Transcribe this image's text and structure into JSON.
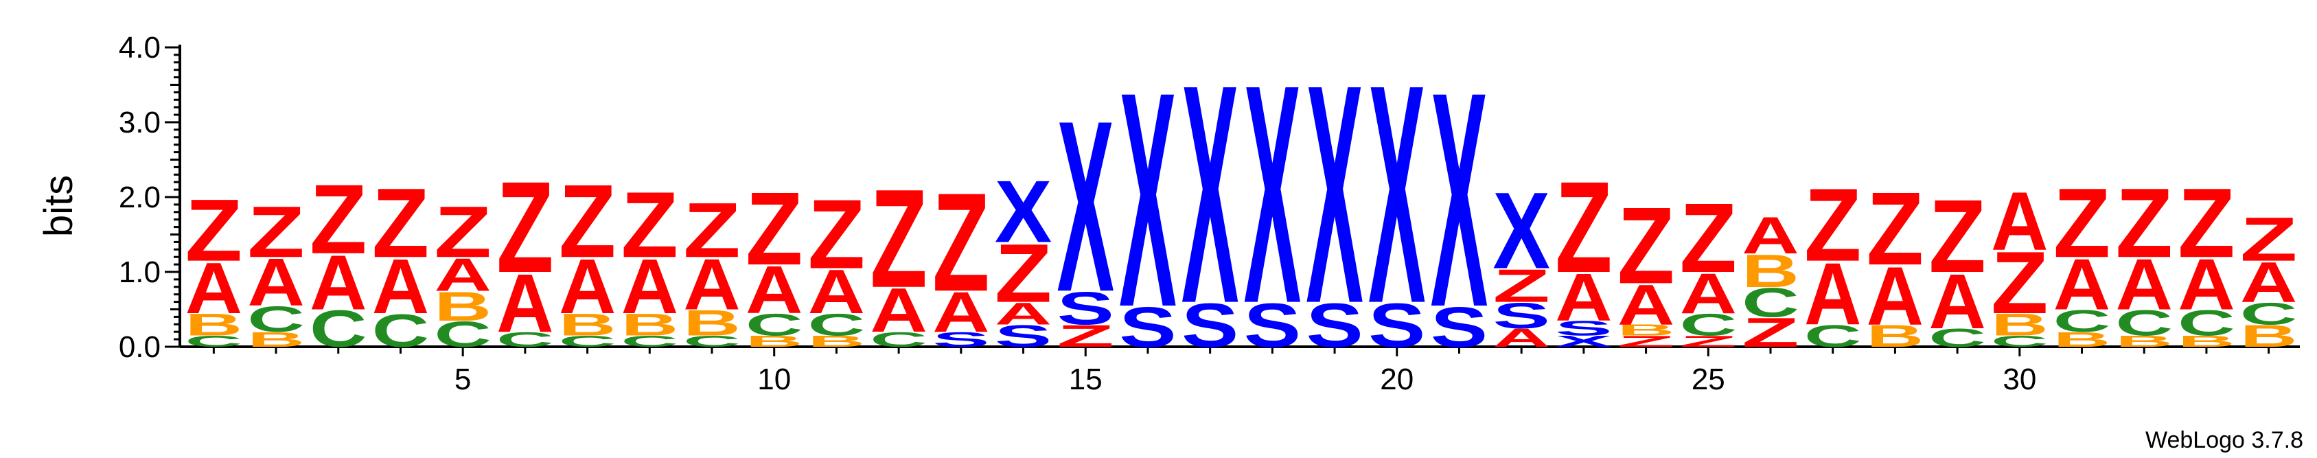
{
  "chart_data": {
    "type": "sequence-logo",
    "ylabel": "bits",
    "ylim": [
      0,
      4.0
    ],
    "yticks": [
      "0.0",
      "1.0",
      "2.0",
      "3.0",
      "4.0"
    ],
    "xticks": [
      5,
      10,
      15,
      20,
      25,
      30
    ],
    "x_range": [
      1,
      34
    ],
    "colors": {
      "Z": "#ff0000",
      "A": "#ff0000",
      "X": "#0000ff",
      "S": "#0000ff",
      "B": "#ff9900",
      "C": "#228b22",
      "axis": "#000000"
    },
    "positions": [
      {
        "pos": 1,
        "letters": [
          [
            "C",
            0.15
          ],
          [
            "B",
            0.3
          ],
          [
            "A",
            0.7
          ],
          [
            "Z",
            0.85
          ]
        ]
      },
      {
        "pos": 2,
        "letters": [
          [
            "B",
            0.2
          ],
          [
            "C",
            0.35
          ],
          [
            "A",
            0.65
          ],
          [
            "Z",
            0.7
          ]
        ]
      },
      {
        "pos": 3,
        "letters": [
          [
            "C",
            0.5
          ],
          [
            "A",
            0.75
          ],
          [
            "Z",
            0.95
          ]
        ]
      },
      {
        "pos": 4,
        "letters": [
          [
            "C",
            0.45
          ],
          [
            "A",
            0.75
          ],
          [
            "Z",
            0.95
          ]
        ]
      },
      {
        "pos": 5,
        "letters": [
          [
            "C",
            0.35
          ],
          [
            "B",
            0.4
          ],
          [
            "A",
            0.45
          ],
          [
            "Z",
            0.7
          ]
        ]
      },
      {
        "pos": 6,
        "letters": [
          [
            "C",
            0.2
          ],
          [
            "A",
            0.8
          ],
          [
            "Z",
            1.25
          ]
        ]
      },
      {
        "pos": 7,
        "letters": [
          [
            "C",
            0.15
          ],
          [
            "B",
            0.3
          ],
          [
            "A",
            0.75
          ],
          [
            "Z",
            1.0
          ]
        ]
      },
      {
        "pos": 8,
        "letters": [
          [
            "C",
            0.15
          ],
          [
            "B",
            0.3
          ],
          [
            "A",
            0.75
          ],
          [
            "Z",
            0.9
          ]
        ]
      },
      {
        "pos": 9,
        "letters": [
          [
            "C",
            0.15
          ],
          [
            "B",
            0.35
          ],
          [
            "A",
            0.7
          ],
          [
            "Z",
            0.75
          ]
        ]
      },
      {
        "pos": 10,
        "letters": [
          [
            "B",
            0.15
          ],
          [
            "C",
            0.3
          ],
          [
            "A",
            0.65
          ],
          [
            "Z",
            1.0
          ]
        ]
      },
      {
        "pos": 11,
        "letters": [
          [
            "B",
            0.15
          ],
          [
            "C",
            0.3
          ],
          [
            "A",
            0.6
          ],
          [
            "Z",
            0.95
          ]
        ]
      },
      {
        "pos": 12,
        "letters": [
          [
            "C",
            0.2
          ],
          [
            "A",
            0.6
          ],
          [
            "Z",
            1.35
          ]
        ]
      },
      {
        "pos": 13,
        "letters": [
          [
            "S",
            0.2
          ],
          [
            "A",
            0.55
          ],
          [
            "Z",
            1.35
          ]
        ]
      },
      {
        "pos": 14,
        "letters": [
          [
            "S",
            0.3
          ],
          [
            "A",
            0.3
          ],
          [
            "Z",
            0.8
          ],
          [
            "X",
            0.85
          ]
        ]
      },
      {
        "pos": 15,
        "letters": [
          [
            "Z",
            0.3
          ],
          [
            "S",
            0.45
          ],
          [
            "X",
            2.35
          ]
        ]
      },
      {
        "pos": 16,
        "letters": [
          [
            "S",
            0.55
          ],
          [
            "X",
            2.95
          ]
        ]
      },
      {
        "pos": 17,
        "letters": [
          [
            "S",
            0.6
          ],
          [
            "X",
            3.0
          ]
        ]
      },
      {
        "pos": 18,
        "letters": [
          [
            "S",
            0.6
          ],
          [
            "X",
            3.0
          ]
        ]
      },
      {
        "pos": 19,
        "letters": [
          [
            "S",
            0.6
          ],
          [
            "X",
            3.0
          ]
        ]
      },
      {
        "pos": 20,
        "letters": [
          [
            "S",
            0.6
          ],
          [
            "X",
            3.0
          ]
        ]
      },
      {
        "pos": 21,
        "letters": [
          [
            "S",
            0.55
          ],
          [
            "X",
            2.95
          ]
        ]
      },
      {
        "pos": 22,
        "letters": [
          [
            "A",
            0.25
          ],
          [
            "S",
            0.35
          ],
          [
            "Z",
            0.45
          ],
          [
            "X",
            1.05
          ]
        ]
      },
      {
        "pos": 23,
        "letters": [
          [
            "X",
            0.15
          ],
          [
            "S",
            0.2
          ],
          [
            "A",
            0.65
          ],
          [
            "Z",
            1.25
          ]
        ]
      },
      {
        "pos": 24,
        "letters": [
          [
            "Z",
            0.15
          ],
          [
            "B",
            0.15
          ],
          [
            "A",
            0.55
          ],
          [
            "Z",
            1.05
          ]
        ]
      },
      {
        "pos": 25,
        "letters": [
          [
            "Z",
            0.15
          ],
          [
            "C",
            0.3
          ],
          [
            "A",
            0.55
          ],
          [
            "Z",
            0.95
          ]
        ]
      },
      {
        "pos": 26,
        "letters": [
          [
            "Z",
            0.4
          ],
          [
            "C",
            0.4
          ],
          [
            "B",
            0.45
          ],
          [
            "A",
            0.5
          ]
        ]
      },
      {
        "pos": 27,
        "letters": [
          [
            "C",
            0.3
          ],
          [
            "A",
            0.85
          ],
          [
            "Z",
            1.0
          ]
        ]
      },
      {
        "pos": 28,
        "letters": [
          [
            "B",
            0.3
          ],
          [
            "A",
            0.8
          ],
          [
            "Z",
            1.0
          ]
        ]
      },
      {
        "pos": 29,
        "letters": [
          [
            "C",
            0.25
          ],
          [
            "A",
            0.75
          ],
          [
            "Z",
            1.0
          ]
        ]
      },
      {
        "pos": 30,
        "letters": [
          [
            "C",
            0.15
          ],
          [
            "B",
            0.3
          ],
          [
            "Z",
            0.85
          ],
          [
            "A",
            0.8
          ]
        ]
      },
      {
        "pos": 31,
        "letters": [
          [
            "B",
            0.2
          ],
          [
            "C",
            0.3
          ],
          [
            "A",
            0.7
          ],
          [
            "Z",
            0.95
          ]
        ]
      },
      {
        "pos": 32,
        "letters": [
          [
            "B",
            0.15
          ],
          [
            "C",
            0.35
          ],
          [
            "A",
            0.7
          ],
          [
            "Z",
            0.95
          ]
        ]
      },
      {
        "pos": 33,
        "letters": [
          [
            "B",
            0.15
          ],
          [
            "C",
            0.35
          ],
          [
            "A",
            0.7
          ],
          [
            "Z",
            0.95
          ]
        ]
      },
      {
        "pos": 34,
        "letters": [
          [
            "B",
            0.3
          ],
          [
            "C",
            0.3
          ],
          [
            "A",
            0.55
          ],
          [
            "Z",
            0.6
          ]
        ]
      }
    ]
  },
  "credit": "WebLogo 3.7.8"
}
